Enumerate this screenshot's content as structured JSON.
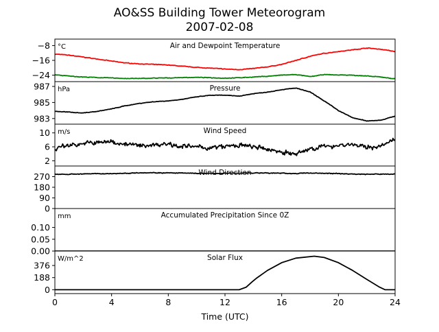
{
  "figure": {
    "title_line1": "AO&SS Building Tower Meteorogram",
    "title_line2": "2007-02-08",
    "xlabel": "Time (UTC)",
    "xticks": [
      0,
      4,
      8,
      12,
      16,
      20,
      24
    ]
  },
  "chart_data": [
    {
      "type": "line",
      "title": "Air and Dewpoint Temperature",
      "unit": "°C",
      "xlim": [
        0,
        24
      ],
      "ylim": [
        -27.5,
        -4.5
      ],
      "yticks": [
        -8,
        -16,
        -24
      ],
      "series": [
        {
          "color": "#ff0000",
          "x": [
            0,
            1,
            2,
            3,
            4,
            5,
            6,
            7,
            8,
            9,
            10,
            11,
            12,
            13,
            14,
            15,
            16,
            17,
            18,
            19,
            20,
            21,
            22,
            23,
            24
          ],
          "y": [
            -12.6,
            -13.2,
            -14.2,
            -15.3,
            -16.4,
            -17.4,
            -17.9,
            -18.2,
            -18.5,
            -19.2,
            -19.8,
            -20.2,
            -20.7,
            -21.0,
            -20.4,
            -19.5,
            -18.2,
            -16.0,
            -13.8,
            -12.2,
            -11.2,
            -10.3,
            -9.3,
            -10.0,
            -11.2
          ]
        },
        {
          "color": "#008000",
          "x": [
            0,
            1,
            2,
            3,
            4,
            5,
            6,
            7,
            8,
            9,
            10,
            11,
            12,
            13,
            14,
            15,
            16,
            17,
            18,
            19,
            20,
            21,
            22,
            23,
            24
          ],
          "y": [
            -23.8,
            -24.5,
            -25.0,
            -25.3,
            -25.5,
            -25.8,
            -25.8,
            -25.6,
            -25.5,
            -25.3,
            -25.2,
            -25.4,
            -25.6,
            -25.4,
            -25.0,
            -24.6,
            -24.0,
            -23.7,
            -24.8,
            -23.7,
            -23.9,
            -24.0,
            -24.5,
            -25.0,
            -26.0
          ]
        }
      ],
      "noise": 0.25
    },
    {
      "type": "line",
      "title": "Pressure",
      "unit": "hPa",
      "xlim": [
        0,
        24
      ],
      "ylim": [
        982.3,
        987.6
      ],
      "yticks": [
        987,
        985,
        983
      ],
      "series": [
        {
          "color": "#000000",
          "x": [
            0,
            1,
            2,
            3,
            4,
            5,
            6,
            7,
            8,
            9,
            10,
            11,
            12,
            13,
            14,
            15,
            16,
            17,
            18,
            19,
            20,
            21,
            22,
            23,
            24
          ],
          "y": [
            983.9,
            983.8,
            983.7,
            983.9,
            984.2,
            984.6,
            984.9,
            985.1,
            985.2,
            985.4,
            985.7,
            985.9,
            985.9,
            985.8,
            986.1,
            986.3,
            986.6,
            986.8,
            986.3,
            985.2,
            984.0,
            983.1,
            982.7,
            982.8,
            983.3
          ]
        }
      ],
      "noise": 0.05
    },
    {
      "type": "line",
      "title": "Wind Speed",
      "unit": "m/s",
      "xlim": [
        0,
        24
      ],
      "ylim": [
        0.5,
        12.5
      ],
      "yticks": [
        10,
        6,
        2
      ],
      "series": [
        {
          "color": "#000000",
          "x": [
            0,
            1,
            2,
            3,
            4,
            5,
            6,
            7,
            8,
            9,
            10,
            11,
            12,
            13,
            14,
            15,
            16,
            17,
            18,
            19,
            20,
            21,
            22,
            23,
            24
          ],
          "y": [
            5.5,
            6.5,
            7.0,
            7.2,
            7.5,
            6.8,
            6.3,
            6.6,
            6.9,
            6.2,
            5.9,
            5.7,
            6.1,
            6.4,
            6.0,
            5.2,
            4.6,
            3.8,
            5.5,
            6.0,
            6.5,
            6.7,
            5.8,
            6.2,
            8.0
          ]
        }
      ],
      "noise": 1.0
    },
    {
      "type": "line",
      "title": "Wind Direction",
      "unit": "",
      "xlim": [
        0,
        24
      ],
      "ylim": [
        0,
        360
      ],
      "yticks": [
        270,
        180,
        90,
        0
      ],
      "series": [
        {
          "color": "#000000",
          "x": [
            0,
            1,
            2,
            3,
            4,
            5,
            6,
            7,
            8,
            9,
            10,
            11,
            12,
            13,
            14,
            15,
            16,
            17,
            18,
            19,
            20,
            21,
            22,
            23,
            24
          ],
          "y": [
            292,
            290,
            293,
            294,
            296,
            298,
            304,
            303,
            301,
            300,
            298,
            297,
            298,
            300,
            301,
            300,
            299,
            296,
            301,
            298,
            296,
            292,
            290,
            291,
            292
          ]
        }
      ],
      "noise": 5
    },
    {
      "type": "line",
      "title": "Accumulated Precipitation Since 0Z",
      "unit": "mm",
      "xlim": [
        0,
        24
      ],
      "ylim": [
        0,
        0.18
      ],
      "yticks": [
        0.1,
        0.05,
        0.0
      ],
      "ytick_labels": [
        "0.10",
        "0.05",
        "0.00"
      ],
      "series": [
        {
          "color": "#000000",
          "x": [
            0,
            24
          ],
          "y": [
            0,
            0
          ]
        }
      ],
      "noise": 0
    },
    {
      "type": "line",
      "title": "Solar Flux",
      "unit": "W/m^2",
      "xlim": [
        0,
        24
      ],
      "ylim": [
        -60,
        600
      ],
      "yticks": [
        376,
        188,
        0
      ],
      "series": [
        {
          "color": "#000000",
          "x": [
            0,
            13.0,
            13.5,
            13.9,
            14.2,
            15,
            16,
            17,
            18.3,
            19,
            20,
            21,
            22,
            22.9,
            23.3,
            24
          ],
          "y": [
            0,
            0,
            40,
            120,
            175,
            300,
            420,
            490,
            520,
            500,
            420,
            300,
            160,
            40,
            0,
            0
          ]
        }
      ],
      "noise": 0
    }
  ]
}
